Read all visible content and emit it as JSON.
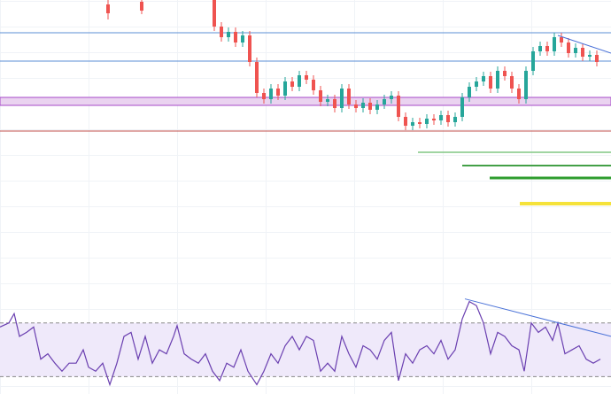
{
  "chart_data": [
    {
      "type": "candlestick",
      "up_color": "#26a69a",
      "down_color": "#ef5350",
      "xlim": [
        0,
        690
      ],
      "ylim": [
        0,
        330
      ],
      "x": [
        122,
        160,
        242,
        250,
        258,
        266,
        274,
        282,
        290,
        298,
        306,
        314,
        322,
        330,
        338,
        346,
        354,
        362,
        370,
        378,
        386,
        394,
        402,
        410,
        418,
        426,
        434,
        442,
        450,
        458,
        466,
        474,
        482,
        490,
        498,
        506,
        514,
        522,
        530,
        538,
        546,
        554,
        562,
        570,
        578,
        586,
        594,
        602,
        610,
        618,
        626,
        634,
        642,
        650,
        658,
        666,
        674
      ],
      "open": [
        325,
        328,
        330,
        300,
        288,
        294,
        282,
        290,
        260,
        225,
        218,
        230,
        222,
        238,
        232,
        245,
        240,
        228,
        215,
        218,
        208,
        230,
        212,
        208,
        214,
        206,
        212,
        218,
        222,
        198,
        188,
        192,
        190,
        196,
        194,
        200,
        192,
        198,
        220,
        232,
        238,
        244,
        230,
        250,
        244,
        230,
        218,
        250,
        272,
        278,
        272,
        288,
        282,
        270,
        276,
        266,
        268
      ],
      "close": [
        315,
        318,
        300,
        288,
        294,
        282,
        290,
        260,
        225,
        218,
        230,
        222,
        238,
        232,
        245,
        240,
        228,
        215,
        218,
        208,
        230,
        212,
        208,
        214,
        206,
        212,
        218,
        222,
        198,
        188,
        192,
        190,
        196,
        194,
        200,
        192,
        198,
        220,
        232,
        238,
        244,
        230,
        250,
        244,
        230,
        218,
        250,
        272,
        278,
        272,
        288,
        282,
        270,
        276,
        266,
        268,
        260
      ],
      "high": [
        330,
        330,
        332,
        305,
        299,
        299,
        295,
        295,
        265,
        230,
        235,
        235,
        243,
        243,
        250,
        250,
        245,
        233,
        223,
        223,
        235,
        235,
        217,
        219,
        219,
        217,
        223,
        227,
        227,
        203,
        197,
        197,
        201,
        201,
        205,
        205,
        203,
        225,
        237,
        243,
        249,
        249,
        255,
        255,
        249,
        235,
        255,
        277,
        283,
        283,
        293,
        293,
        287,
        281,
        281,
        273,
        273
      ],
      "low": [
        308,
        314,
        295,
        283,
        283,
        277,
        277,
        255,
        220,
        213,
        213,
        217,
        217,
        227,
        227,
        235,
        223,
        210,
        210,
        203,
        203,
        207,
        203,
        203,
        201,
        201,
        207,
        213,
        193,
        183,
        183,
        185,
        185,
        189,
        189,
        187,
        187,
        193,
        215,
        227,
        233,
        225,
        225,
        239,
        225,
        213,
        213,
        245,
        267,
        267,
        267,
        277,
        265,
        265,
        261,
        261,
        255
      ],
      "levels": [
        {
          "value": 293,
          "x_start": 0,
          "color": "#5b8fd6",
          "width": 1
        },
        {
          "value": 261,
          "x_start": 0,
          "color": "#5b8fd6",
          "width": 1
        },
        {
          "value": 182,
          "x_start": 0,
          "color": "#c0504d",
          "width": 1
        },
        {
          "value": 158,
          "x_start": 472,
          "color": "#81c784",
          "width": 1.5
        },
        {
          "value": 143,
          "x_start": 522,
          "color": "#43a047",
          "width": 2
        },
        {
          "value": 129,
          "x_start": 553,
          "color": "#2e9d2e",
          "width": 3
        },
        {
          "value": 100,
          "x_start": 587,
          "color": "#f5e23a",
          "width": 4
        }
      ],
      "band": {
        "top": 220,
        "bottom": 211,
        "fill": "#ead3f0",
        "color": "#a64ac9"
      },
      "trendlines": [
        {
          "x": [
            630,
            690
          ],
          "y": [
            290,
            270
          ],
          "color": "#4a72d8"
        }
      ]
    },
    {
      "type": "line",
      "color": "#6a3fb0",
      "band_fill": "#efe9fa",
      "xlim": [
        0,
        690
      ],
      "ylim": [
        17,
        93
      ],
      "band": [
        30,
        70
      ],
      "x": [
        0,
        10,
        16,
        22,
        30,
        38,
        46,
        54,
        62,
        70,
        78,
        86,
        94,
        100,
        108,
        116,
        124,
        132,
        140,
        148,
        156,
        164,
        172,
        180,
        188,
        196,
        200,
        208,
        216,
        224,
        232,
        240,
        248,
        256,
        264,
        272,
        280,
        290,
        298,
        306,
        314,
        322,
        330,
        338,
        346,
        354,
        362,
        370,
        378,
        386,
        394,
        402,
        410,
        418,
        426,
        434,
        442,
        450,
        458,
        466,
        474,
        482,
        490,
        498,
        506,
        514,
        522,
        530,
        538,
        546,
        554,
        562,
        570,
        578,
        586,
        592,
        600,
        608,
        616,
        624,
        630,
        638,
        646,
        654,
        662,
        670,
        678
      ],
      "values": [
        67,
        70,
        77,
        60,
        63,
        67,
        43,
        47,
        40,
        34,
        40,
        40,
        50,
        37,
        34,
        40,
        24,
        40,
        60,
        63,
        43,
        60,
        40,
        50,
        47,
        60,
        68,
        47,
        43,
        40,
        47,
        34,
        27,
        40,
        37,
        50,
        34,
        24,
        34,
        47,
        40,
        53,
        60,
        50,
        60,
        57,
        34,
        40,
        34,
        60,
        47,
        37,
        53,
        50,
        43,
        57,
        63,
        27,
        47,
        40,
        50,
        53,
        47,
        57,
        43,
        50,
        73,
        86,
        83,
        70,
        47,
        63,
        60,
        53,
        50,
        34,
        70,
        63,
        67,
        57,
        70,
        47,
        50,
        53,
        43,
        40,
        43
      ],
      "trendlines": [
        {
          "x": [
            525,
            690
          ],
          "y": [
            88,
            60
          ],
          "color": "#4a72d8"
        }
      ]
    }
  ]
}
